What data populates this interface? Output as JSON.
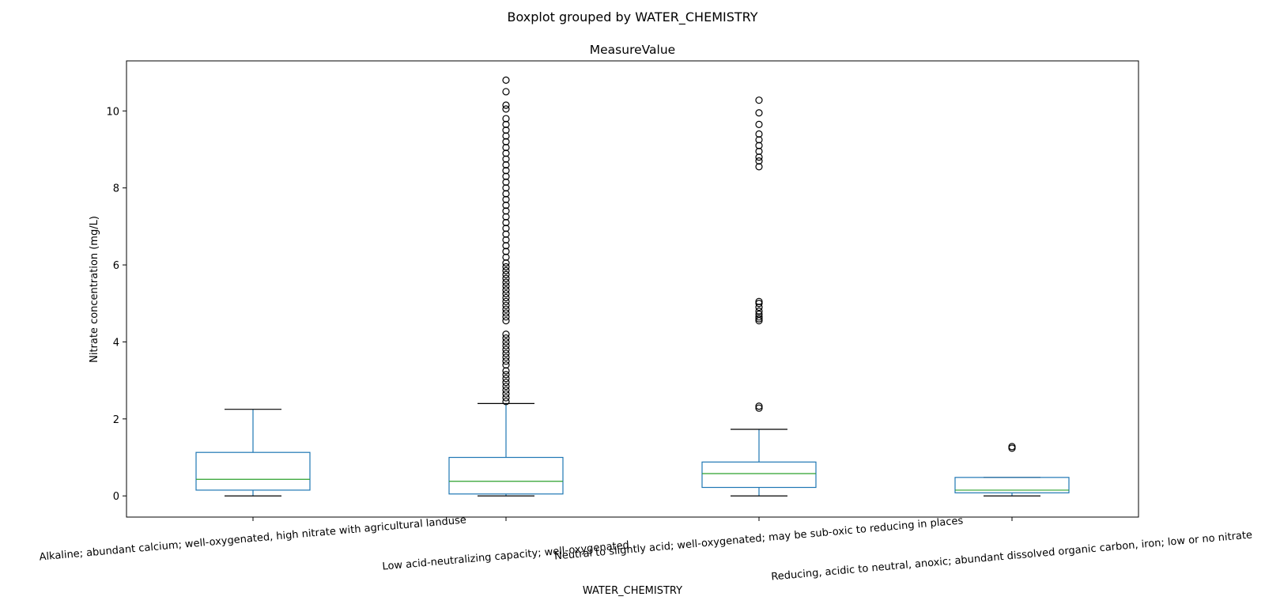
{
  "chart_data": {
    "type": "boxplot",
    "suptitle": "Boxplot grouped by WATER_CHEMISTRY",
    "title": "MeasureValue",
    "xlabel": "WATER_CHEMISTRY",
    "ylabel": "Nitrate concentration (mg/L)",
    "ylim": [
      -0.55,
      11.3
    ],
    "yticks": [
      0,
      2,
      4,
      6,
      8,
      10
    ],
    "grid": false,
    "colors": {
      "box": "#1f77b4",
      "median": "#2ca02c",
      "outlier": "#000000"
    },
    "categories": [
      "Alkaline; abundant calcium; well-oxygenated, high nitrate with agricultural landuse",
      "Low acid-neutralizing capacity; well-oxygenated",
      "Neutral to slightly acid; well-oxygenated; may be sub-oxic to reducing in places",
      "Reducing, acidic to neutral, anoxic; abundant dissolved organic carbon, iron; low or no nitrate"
    ],
    "boxes": [
      {
        "whisker_low": 0.0,
        "q1": 0.15,
        "median": 0.43,
        "q3": 1.13,
        "whisker_high": 2.25,
        "outliers": []
      },
      {
        "whisker_low": 0.0,
        "q1": 0.05,
        "median": 0.38,
        "q3": 1.0,
        "whisker_high": 2.4,
        "outliers": [
          2.45,
          2.55,
          2.65,
          2.75,
          2.85,
          2.95,
          3.05,
          3.15,
          3.25,
          3.4,
          3.5,
          3.6,
          3.7,
          3.8,
          3.9,
          4.0,
          4.1,
          4.2,
          4.55,
          4.65,
          4.75,
          4.85,
          4.95,
          5.05,
          5.15,
          5.25,
          5.35,
          5.45,
          5.55,
          5.65,
          5.75,
          5.85,
          5.95,
          6.05,
          6.2,
          6.35,
          6.5,
          6.65,
          6.8,
          6.95,
          7.1,
          7.25,
          7.4,
          7.55,
          7.7,
          7.85,
          8.0,
          8.15,
          8.3,
          8.45,
          8.6,
          8.75,
          8.9,
          9.05,
          9.2,
          9.35,
          9.5,
          9.65,
          9.8,
          10.05,
          10.15,
          10.5,
          10.8
        ]
      },
      {
        "whisker_low": 0.0,
        "q1": 0.22,
        "median": 0.58,
        "q3": 0.88,
        "whisker_high": 1.73,
        "outliers": [
          2.28,
          2.33,
          4.55,
          4.6,
          4.65,
          4.72,
          4.8,
          4.9,
          5.0,
          5.05,
          8.55,
          8.7,
          8.8,
          8.95,
          9.1,
          9.25,
          9.4,
          9.65,
          9.95,
          10.28
        ]
      },
      {
        "whisker_low": 0.0,
        "q1": 0.08,
        "median": 0.15,
        "q3": 0.48,
        "whisker_high": 0.48,
        "outliers": [
          1.24,
          1.28
        ]
      }
    ]
  }
}
